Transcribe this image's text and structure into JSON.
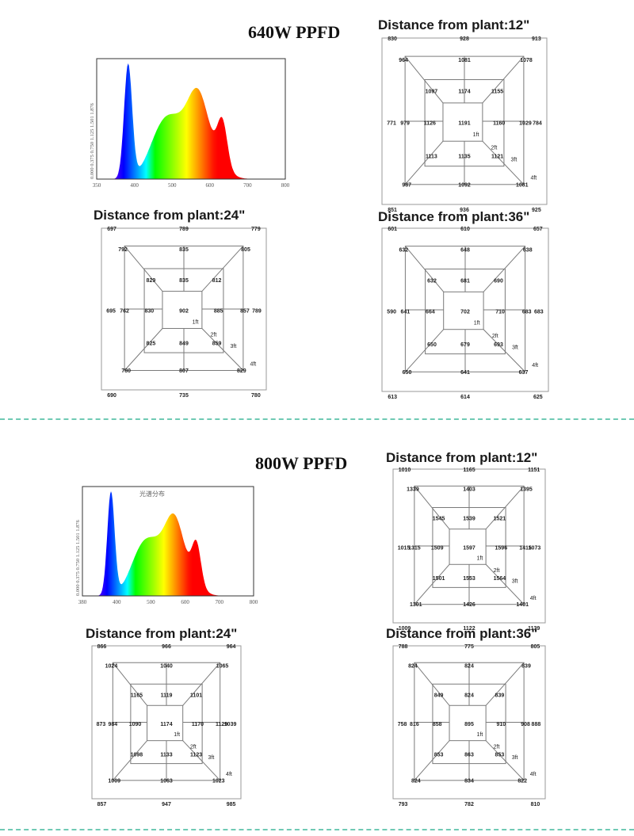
{
  "sections": [
    {
      "title": "640W PPFD",
      "spectrum": {
        "caption": "",
        "ytick_labels": "0.000 0.375 0.750 1.125 1.501 1.876",
        "xtick_labels": [
          "350",
          "400",
          "500",
          "600",
          "700",
          "800"
        ]
      },
      "grids": [
        {
          "title": "Distance from plant:12\"",
          "values": [
            "830",
            "928",
            "913",
            "964",
            "1081",
            "1078",
            "1097",
            "1174",
            "1155",
            "771",
            "979",
            "1126",
            "1191",
            "1160",
            "1029",
            "784",
            "1113",
            "1135",
            "1121",
            "987",
            "1092",
            "1081",
            "851",
            "936",
            "925"
          ]
        },
        {
          "title": "Distance from plant:24\"",
          "values": [
            "697",
            "789",
            "779",
            "792",
            "835",
            "805",
            "829",
            "835",
            "812",
            "695",
            "762",
            "830",
            "902",
            "885",
            "857",
            "789",
            "825",
            "849",
            "859",
            "780",
            "807",
            "829",
            "690",
            "735",
            "780"
          ]
        },
        {
          "title": "Distance from plant:36\"",
          "values": [
            "601",
            "610",
            "657",
            "632",
            "648",
            "638",
            "632",
            "681",
            "690",
            "590",
            "641",
            "664",
            "702",
            "710",
            "683",
            "683",
            "650",
            "679",
            "693",
            "650",
            "641",
            "637",
            "613",
            "614",
            "625"
          ]
        }
      ]
    },
    {
      "title": "800W PPFD",
      "spectrum": {
        "caption": "光谱分布",
        "ytick_labels": "0.000 0.375 0.750 1.125 1.501 1.876",
        "xtick_labels": [
          "380",
          "400",
          "500",
          "600",
          "700",
          "800"
        ]
      },
      "grids": [
        {
          "title": "Distance from plant:12\"",
          "values": [
            "1010",
            "1165",
            "1151",
            "1339",
            "1403",
            "1395",
            "1545",
            "1539",
            "1521",
            "1015",
            "1315",
            "1509",
            "1597",
            "1596",
            "1415",
            "1073",
            "1501",
            "1553",
            "1564",
            "1301",
            "1426",
            "1401",
            "1009",
            "1122",
            "1139"
          ]
        },
        {
          "title": "Distance from plant:24\"",
          "values": [
            "866",
            "966",
            "964",
            "1024",
            "1040",
            "1065",
            "1165",
            "1119",
            "1101",
            "873",
            "984",
            "1090",
            "1174",
            "1170",
            "1129",
            "1039",
            "1098",
            "1133",
            "1123",
            "1009",
            "1063",
            "1023",
            "857",
            "947",
            "985"
          ]
        },
        {
          "title": "Distance from plant:36\"",
          "values": [
            "788",
            "775",
            "805",
            "824",
            "824",
            "839",
            "849",
            "824",
            "839",
            "758",
            "816",
            "858",
            "895",
            "910",
            "908",
            "888",
            "853",
            "863",
            "853",
            "824",
            "834",
            "822",
            "793",
            "782",
            "810"
          ]
        }
      ]
    }
  ],
  "ring_labels": [
    "1ft",
    "2ft",
    "3ft",
    "4ft"
  ]
}
